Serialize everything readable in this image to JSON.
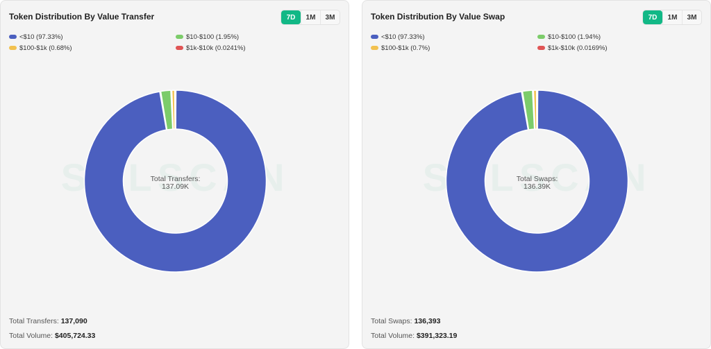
{
  "periods": [
    "7D",
    "1M",
    "3M"
  ],
  "panels": [
    {
      "title": "Token Distribution By Value Transfer",
      "active_period": "7D",
      "legend": [
        {
          "label": "<$10 (97.33%)",
          "color": "#4b5fbf"
        },
        {
          "label": "$10-$100 (1.95%)",
          "color": "#7ccc6a"
        },
        {
          "label": "$100-$1k (0.68%)",
          "color": "#f2c14f"
        },
        {
          "label": "$1k-$10k (0.0241%)",
          "color": "#e05555"
        }
      ],
      "watermark": "SOLSCAN",
      "center_label": "Total Transfers:",
      "center_value": "137.09K",
      "stat1_label": "Total Transfers:",
      "stat1_value": "137,090",
      "stat2_label": "Total Volume:",
      "stat2_value": "$405,724.33"
    },
    {
      "title": "Token Distribution By Value Swap",
      "active_period": "7D",
      "legend": [
        {
          "label": "<$10 (97.33%)",
          "color": "#4b5fbf"
        },
        {
          "label": "$10-$100 (1.94%)",
          "color": "#7ccc6a"
        },
        {
          "label": "$100-$1k (0.7%)",
          "color": "#f2c14f"
        },
        {
          "label": "$1k-$10k (0.0169%)",
          "color": "#e05555"
        }
      ],
      "watermark": "SOLSCAN",
      "center_label": "Total Swaps:",
      "center_value": "136.39K",
      "stat1_label": "Total Swaps:",
      "stat1_value": "136,393",
      "stat2_label": "Total Volume:",
      "stat2_value": "$391,323.19"
    }
  ],
  "chart_data": [
    {
      "type": "pie",
      "categories": [
        "<$10",
        "$10-$100",
        "$100-$1k",
        "$1k-$10k"
      ],
      "values": [
        97.33,
        1.95,
        0.68,
        0.0241
      ],
      "unit": "%",
      "colors": [
        "#4b5fbf",
        "#7ccc6a",
        "#f2c14f",
        "#e05555"
      ]
    },
    {
      "type": "pie",
      "categories": [
        "<$10",
        "$10-$100",
        "$100-$1k",
        "$1k-$10k"
      ],
      "values": [
        97.33,
        1.94,
        0.7,
        0.0169
      ],
      "unit": "%",
      "colors": [
        "#4b5fbf",
        "#7ccc6a",
        "#f2c14f",
        "#e05555"
      ]
    }
  ]
}
